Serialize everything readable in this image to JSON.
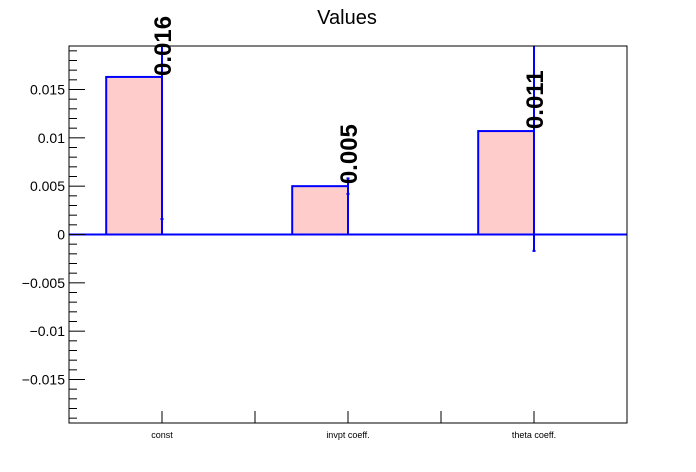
{
  "chart_data": {
    "type": "bar",
    "title": "Values",
    "xlabel": "",
    "ylabel": "",
    "categories": [
      "const",
      "invpt coeff.",
      "theta coeff."
    ],
    "values": [
      0.0163,
      0.005,
      0.0107
    ],
    "errors": [
      0.0147,
      0.0008,
      0.0124
    ],
    "value_labels": [
      "0.016",
      "0.005",
      "0.011"
    ],
    "ylim": [
      -0.0195,
      0.0195
    ],
    "yticks": [
      -0.015,
      -0.01,
      -0.005,
      0,
      0.005,
      0.01,
      0.015
    ],
    "ytick_labels": [
      "−0.015",
      "−0.01",
      "−0.005",
      "0",
      "0.005",
      "0.01",
      "0.015"
    ],
    "grid": false,
    "bar_fill_color": "#ffcccc",
    "bar_edge_color": "#0000ff",
    "error_bar_color": "#0000ff",
    "baseline_color": "#0000ff"
  }
}
